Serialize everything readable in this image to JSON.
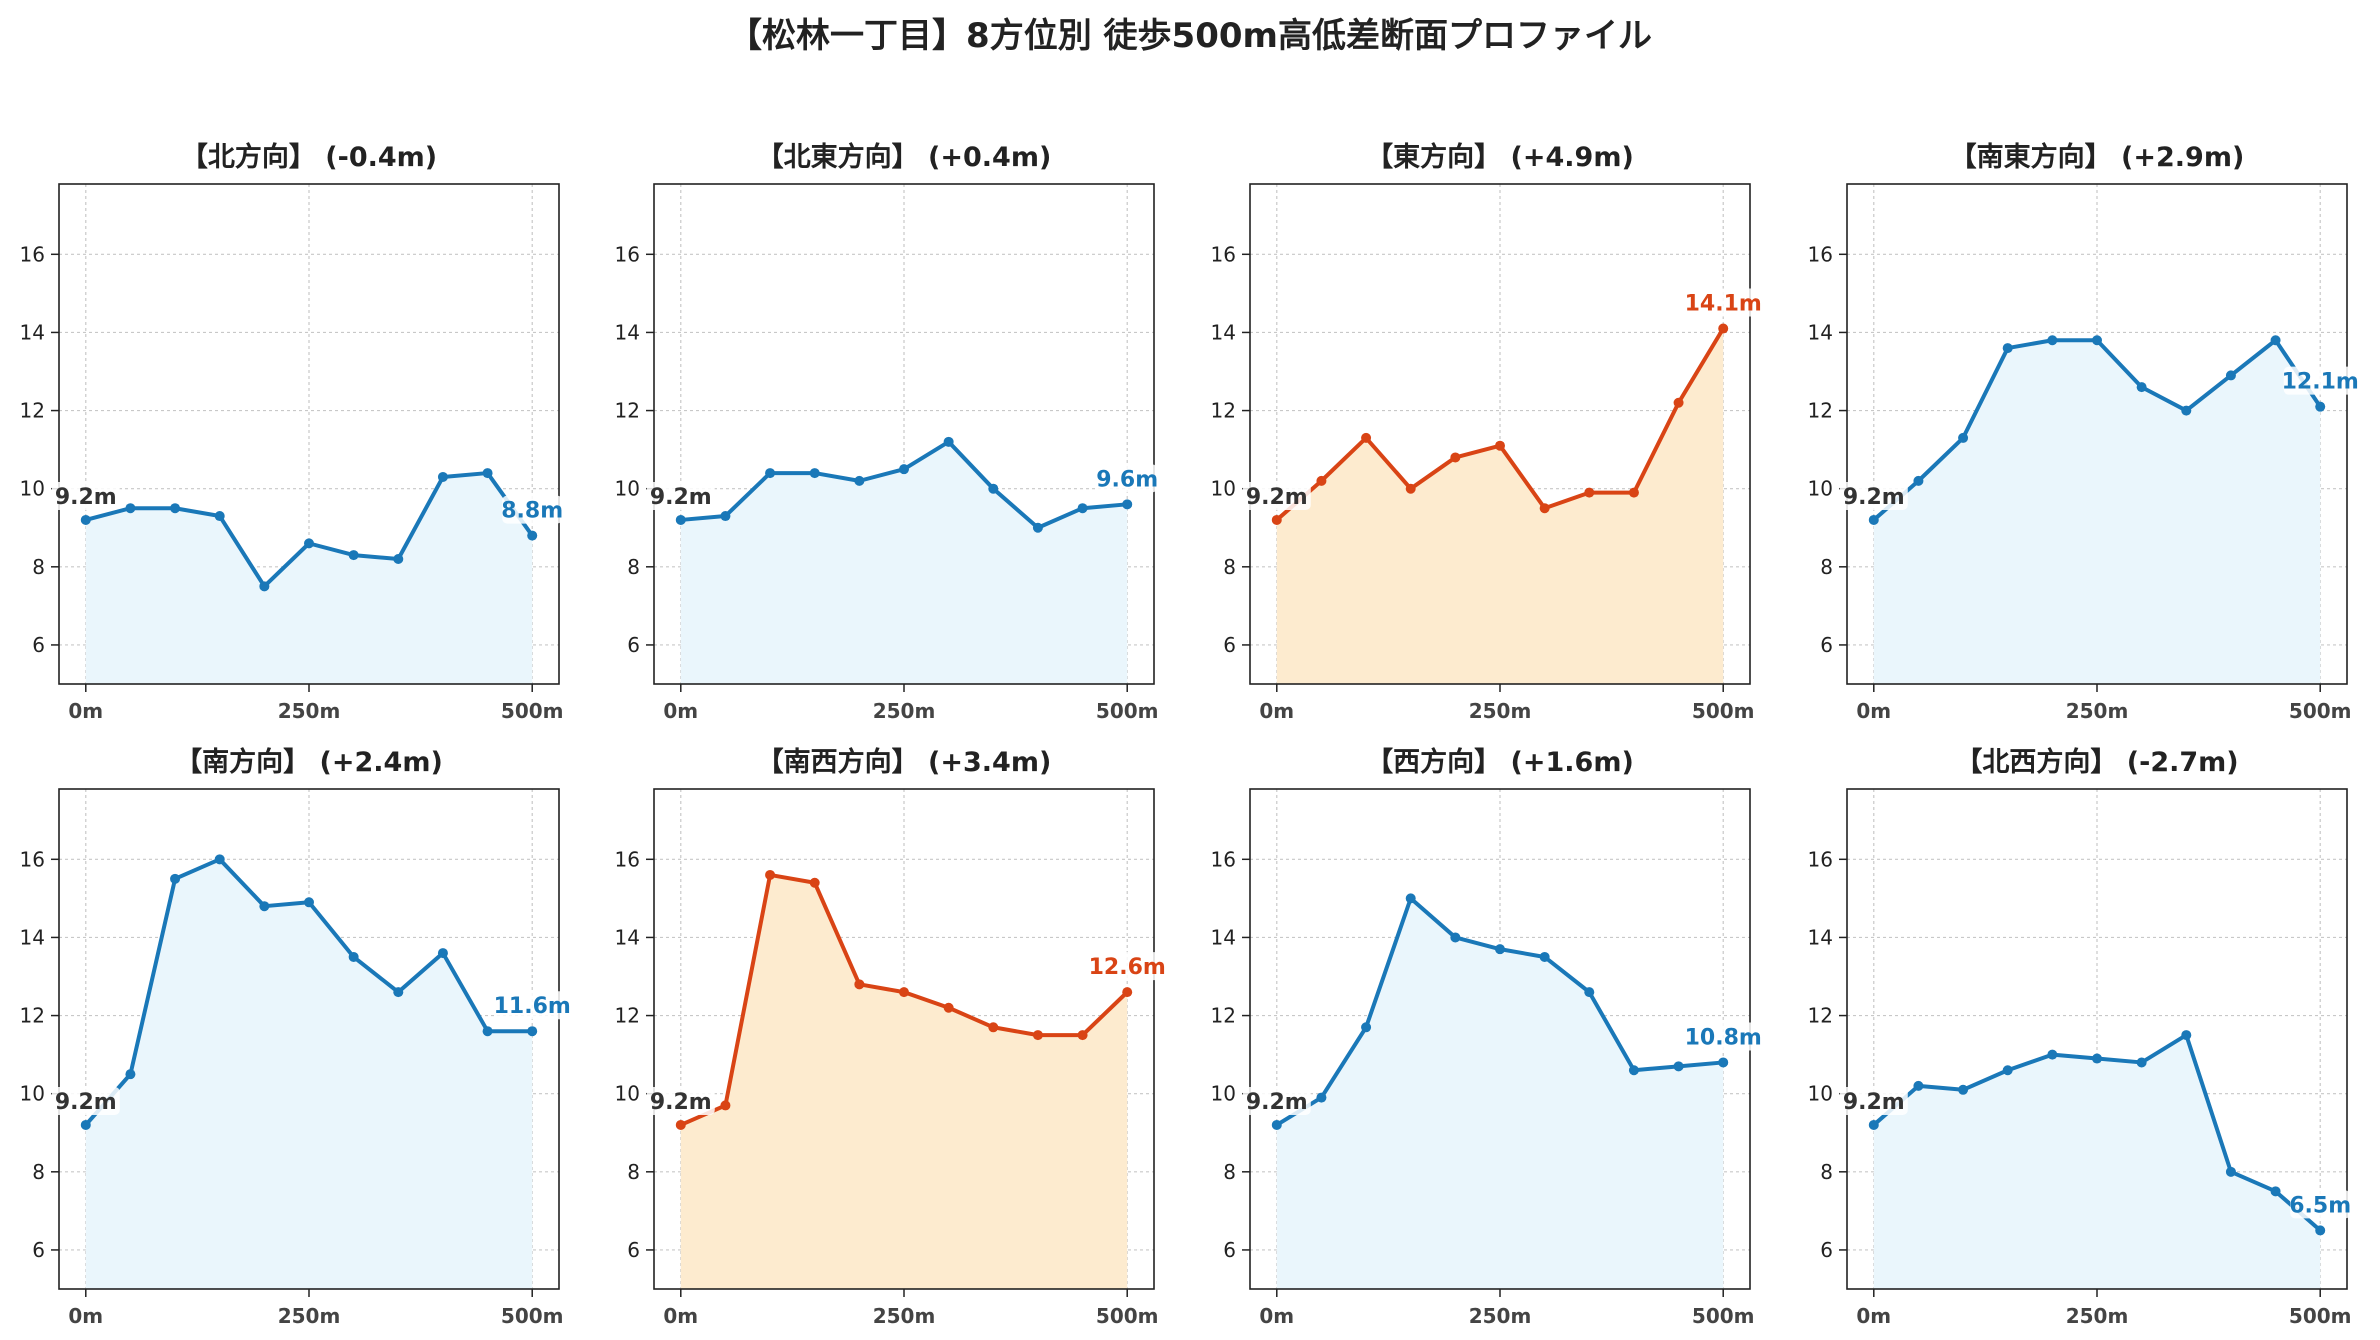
{
  "title": "【松林一丁目】8方位別 徒歩500m高低差断面プロファイル",
  "colors": {
    "rise_line": "#d94415",
    "rise_fill": "#fdebcf",
    "flat_line": "#1a78b8",
    "flat_fill": "#eaf6fc",
    "start_label": "#333333"
  },
  "chart_data": [
    {
      "type": "area",
      "title": "【北方向】 (-0.4m)",
      "x": [
        0,
        50,
        100,
        150,
        200,
        250,
        300,
        350,
        400,
        450,
        500
      ],
      "values": [
        9.2,
        9.5,
        9.5,
        9.3,
        7.5,
        8.6,
        8.3,
        8.2,
        10.3,
        10.4,
        8.8
      ],
      "xticks": [
        "0m",
        "250m",
        "500m"
      ],
      "yticks": [
        "6",
        "8",
        "10",
        "12",
        "14",
        "16"
      ],
      "ylim": [
        5,
        17.8
      ],
      "start_label": "9.2m",
      "end_label": "8.8m",
      "grid": true,
      "emphasis": false
    },
    {
      "type": "area",
      "title": "【北東方向】 (+0.4m)",
      "x": [
        0,
        50,
        100,
        150,
        200,
        250,
        300,
        350,
        400,
        450,
        500
      ],
      "values": [
        9.2,
        9.3,
        10.4,
        10.4,
        10.2,
        10.5,
        11.2,
        10.0,
        9.0,
        9.5,
        9.6
      ],
      "xticks": [
        "0m",
        "250m",
        "500m"
      ],
      "yticks": [
        "6",
        "8",
        "10",
        "12",
        "14",
        "16"
      ],
      "ylim": [
        5,
        17.8
      ],
      "start_label": "9.2m",
      "end_label": "9.6m",
      "grid": true,
      "emphasis": false
    },
    {
      "type": "area",
      "title": "【東方向】 (+4.9m)",
      "x": [
        0,
        50,
        100,
        150,
        200,
        250,
        300,
        350,
        400,
        450,
        500
      ],
      "values": [
        9.2,
        10.2,
        11.3,
        10.0,
        10.8,
        11.1,
        9.5,
        9.9,
        9.9,
        12.2,
        14.1
      ],
      "xticks": [
        "0m",
        "250m",
        "500m"
      ],
      "yticks": [
        "6",
        "8",
        "10",
        "12",
        "14",
        "16"
      ],
      "ylim": [
        5,
        17.8
      ],
      "start_label": "9.2m",
      "end_label": "14.1m",
      "grid": true,
      "emphasis": true
    },
    {
      "type": "area",
      "title": "【南東方向】 (+2.9m)",
      "x": [
        0,
        50,
        100,
        150,
        200,
        250,
        300,
        350,
        400,
        450,
        500
      ],
      "values": [
        9.2,
        10.2,
        11.3,
        13.6,
        13.8,
        13.8,
        12.6,
        12.0,
        12.9,
        13.8,
        12.1
      ],
      "xticks": [
        "0m",
        "250m",
        "500m"
      ],
      "yticks": [
        "6",
        "8",
        "10",
        "12",
        "14",
        "16"
      ],
      "ylim": [
        5,
        17.8
      ],
      "start_label": "9.2m",
      "end_label": "12.1m",
      "grid": true,
      "emphasis": false
    },
    {
      "type": "area",
      "title": "【南方向】 (+2.4m)",
      "x": [
        0,
        50,
        100,
        150,
        200,
        250,
        300,
        350,
        400,
        450,
        500
      ],
      "values": [
        9.2,
        10.5,
        15.5,
        16.0,
        14.8,
        14.9,
        13.5,
        12.6,
        13.6,
        11.6,
        11.6
      ],
      "xticks": [
        "0m",
        "250m",
        "500m"
      ],
      "yticks": [
        "6",
        "8",
        "10",
        "12",
        "14",
        "16"
      ],
      "ylim": [
        5,
        17.8
      ],
      "start_label": "9.2m",
      "end_label": "11.6m",
      "grid": true,
      "emphasis": false
    },
    {
      "type": "area",
      "title": "【南西方向】 (+3.4m)",
      "x": [
        0,
        50,
        100,
        150,
        200,
        250,
        300,
        350,
        400,
        450,
        500
      ],
      "values": [
        9.2,
        9.7,
        15.6,
        15.4,
        12.8,
        12.6,
        12.2,
        11.7,
        11.5,
        11.5,
        12.6
      ],
      "xticks": [
        "0m",
        "250m",
        "500m"
      ],
      "yticks": [
        "6",
        "8",
        "10",
        "12",
        "14",
        "16"
      ],
      "ylim": [
        5,
        17.8
      ],
      "start_label": "9.2m",
      "end_label": "12.6m",
      "grid": true,
      "emphasis": true
    },
    {
      "type": "area",
      "title": "【西方向】 (+1.6m)",
      "x": [
        0,
        50,
        100,
        150,
        200,
        250,
        300,
        350,
        400,
        450,
        500
      ],
      "values": [
        9.2,
        9.9,
        11.7,
        15.0,
        14.0,
        13.7,
        13.5,
        12.6,
        10.6,
        10.7,
        10.8
      ],
      "xticks": [
        "0m",
        "250m",
        "500m"
      ],
      "yticks": [
        "6",
        "8",
        "10",
        "12",
        "14",
        "16"
      ],
      "ylim": [
        5,
        17.8
      ],
      "start_label": "9.2m",
      "end_label": "10.8m",
      "grid": true,
      "emphasis": false
    },
    {
      "type": "area",
      "title": "【北西方向】 (-2.7m)",
      "x": [
        0,
        50,
        100,
        150,
        200,
        250,
        300,
        350,
        400,
        450,
        500
      ],
      "values": [
        9.2,
        10.2,
        10.1,
        10.6,
        11.0,
        10.9,
        10.8,
        11.5,
        8.0,
        7.5,
        6.5
      ],
      "xticks": [
        "0m",
        "250m",
        "500m"
      ],
      "yticks": [
        "6",
        "8",
        "10",
        "12",
        "14",
        "16"
      ],
      "ylim": [
        5,
        17.8
      ],
      "start_label": "9.2m",
      "end_label": "6.5m",
      "grid": true,
      "emphasis": false
    }
  ]
}
